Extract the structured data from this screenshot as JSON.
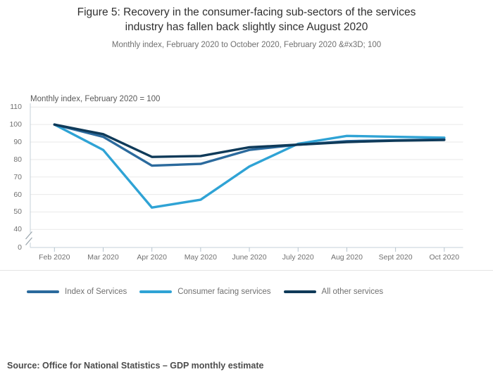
{
  "title": {
    "line1": "Figure 5: Recovery in the consumer-facing sub-sectors of the services",
    "line2": "industry has fallen back slightly since August 2020"
  },
  "subtitle": "Monthly index, February 2020 to October 2020, February 2020 &#x3D; 100",
  "source": "Source: Office for National Statistics – GDP monthly estimate",
  "colors": {
    "index_of_services": "#2b6a9d",
    "consumer_facing_services": "#2fa3d5",
    "all_other_services": "#0f3a59",
    "gridline": "#e9e9e9",
    "axis": "#c5d0d8",
    "tick": "#b6c3cd",
    "text_muted": "#707070"
  },
  "chart_data": {
    "type": "line",
    "title": "Figure 5: Recovery in the consumer-facing sub-sectors of the services industry has fallen back slightly since August 2020",
    "subtitle": "Monthly index, February 2020 to October 2020, February 2020 &#x3D; 100",
    "axis_title": "Monthly index, February 2020 = 100",
    "xlabel": "",
    "ylabel": "Monthly index, February 2020 = 100",
    "categories": [
      "Feb 2020",
      "Mar 2020",
      "Apr 2020",
      "May 2020",
      "June 2020",
      "July 2020",
      "Aug 2020",
      "Sept 2020",
      "Oct 2020"
    ],
    "series": [
      {
        "name": "Index of Services",
        "color": "#2b6a9d",
        "values": [
          100,
          93,
          76.5,
          77.5,
          85.5,
          88.5,
          90.5,
          91,
          91.5
        ]
      },
      {
        "name": "Consumer facing services",
        "color": "#2fa3d5",
        "values": [
          100,
          85.5,
          52.5,
          57,
          76,
          89,
          93.5,
          93,
          92.5
        ]
      },
      {
        "name": "All other services",
        "color": "#0f3a59",
        "values": [
          100,
          94.5,
          81.5,
          82,
          87,
          88.5,
          90,
          90.8,
          91.2
        ]
      }
    ],
    "y_ticks": [
      0,
      40,
      50,
      60,
      70,
      80,
      90,
      100,
      110
    ],
    "y_axis_break": "axis broken between 0 and 40",
    "ylim": [
      40,
      110
    ],
    "grid": true,
    "legend_position": "bottom"
  },
  "legend": {
    "items": [
      "Index of Services",
      "Consumer facing services",
      "All other services"
    ]
  }
}
